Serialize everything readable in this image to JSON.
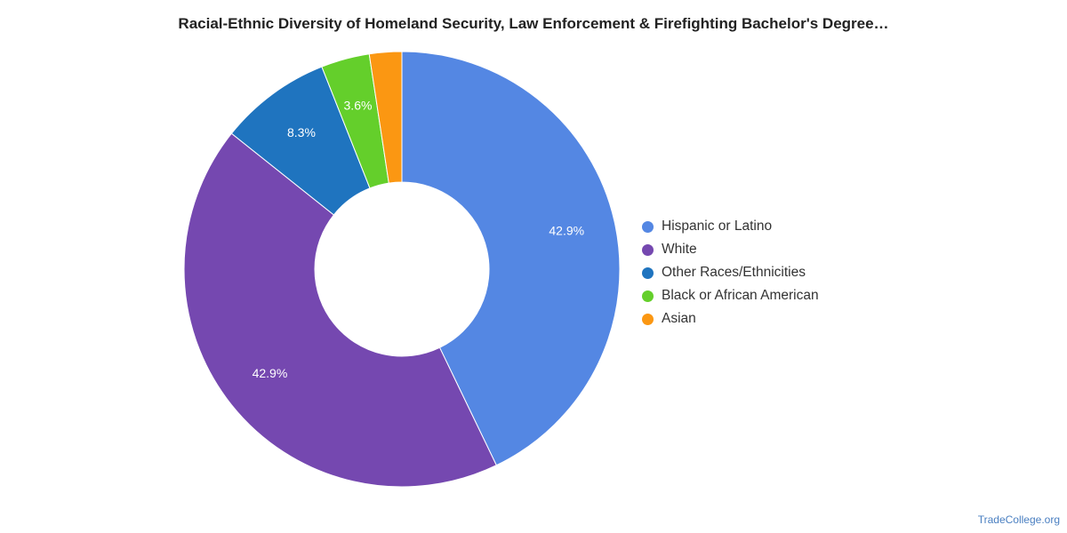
{
  "chart_data": {
    "type": "pie",
    "variant": "donut",
    "title": "Racial-Ethnic Diversity of Homeland Security, Law Enforcement & Firefighting Bachelor's Degree…",
    "slices": [
      {
        "label": "Hispanic or Latino",
        "value": 42.9,
        "display": "42.9%",
        "color": "#5487e3"
      },
      {
        "label": "White",
        "value": 42.9,
        "display": "42.9%",
        "color": "#7548b0"
      },
      {
        "label": "Other Races/Ethnicities",
        "value": 8.3,
        "display": "8.3%",
        "color": "#1f74bf"
      },
      {
        "label": "Black or African American",
        "value": 3.6,
        "display": "3.6%",
        "color": "#64cf2b"
      },
      {
        "label": "Asian",
        "value": 2.4,
        "display": "",
        "color": "#fb9712"
      }
    ],
    "legend_position": "right"
  },
  "watermark": "TradeCollege.org"
}
